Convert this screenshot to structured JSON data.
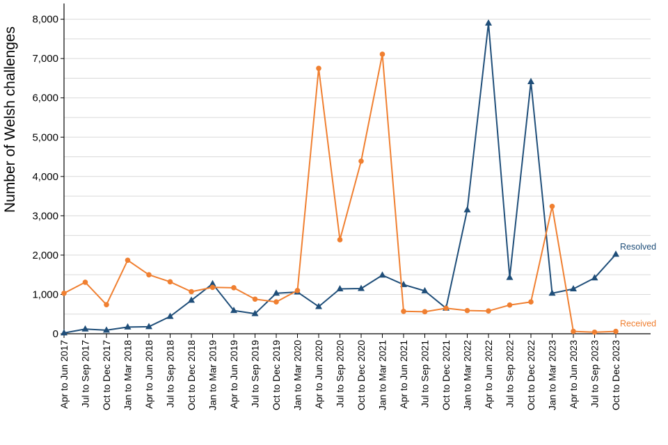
{
  "chart_data": {
    "type": "line",
    "title": "",
    "xlabel": "",
    "ylabel": "Number of Welsh challenges",
    "ylim": [
      0,
      8400
    ],
    "yticks": [
      0,
      1000,
      2000,
      3000,
      4000,
      5000,
      6000,
      7000,
      8000
    ],
    "ytick_labels": [
      "0",
      "1,000",
      "2,000",
      "3,000",
      "4,000",
      "5,000",
      "6,000",
      "7,000",
      "8,000"
    ],
    "grid": true,
    "legend": "none (series labelled at line ends, right)",
    "categories": [
      "Apr to Jun 2017",
      "Jul to Sep 2017",
      "Oct to Dec 2017",
      "Jan to Mar 2018",
      "Apr to Jun 2018",
      "Jul to Sep 2018",
      "Oct to Dec 2018",
      "Jan to Mar 2019",
      "Apr to Jun 2019",
      "Jul to Sep 2019",
      "Oct to Dec 2019",
      "Jan to Mar 2020",
      "Apr to Jun 2020",
      "Jul to Sep 2020",
      "Oct to Dec 2020",
      "Jan to Mar 2021",
      "Apr to Jun 2021",
      "Jul to Sep 2021",
      "Oct to Dec 2021",
      "Jan to Mar 2022",
      "Apr to Jun 2022",
      "Jul to Sep 2022",
      "Oct to Dec 2022",
      "Jan to Mar 2023",
      "Apr to Jun 2023",
      "Jul to Sep 2023",
      "Oct to Dec 2023"
    ],
    "series": [
      {
        "name": "Resolved",
        "color": "#1f4e79",
        "marker": "triangle",
        "values": [
          20,
          120,
          90,
          170,
          180,
          440,
          850,
          1270,
          590,
          510,
          1030,
          1060,
          690,
          1140,
          1150,
          1490,
          1250,
          1090,
          650,
          3150,
          7900,
          1430,
          6410,
          1030,
          1140,
          1420,
          2020
        ]
      },
      {
        "name": "Received",
        "color": "#f07f30",
        "marker": "circle",
        "values": [
          1030,
          1310,
          740,
          1870,
          1500,
          1320,
          1070,
          1180,
          1170,
          880,
          810,
          1100,
          6750,
          2390,
          4390,
          7110,
          570,
          560,
          650,
          590,
          580,
          730,
          810,
          3240,
          60,
          40,
          60
        ]
      }
    ]
  }
}
